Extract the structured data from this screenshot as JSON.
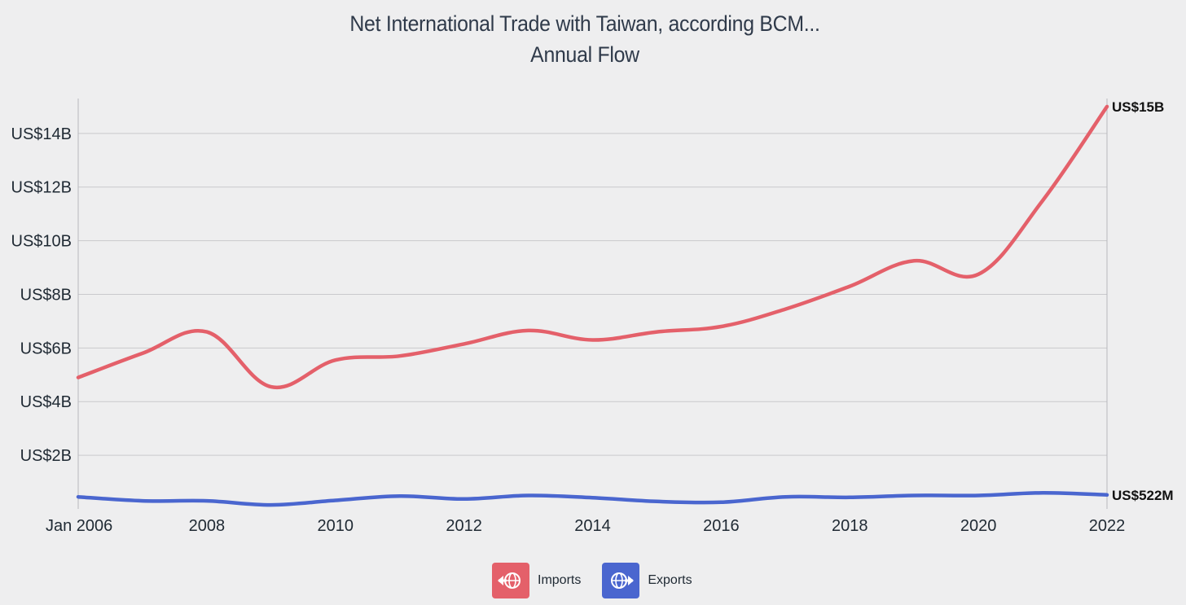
{
  "chart_data": {
    "type": "line",
    "title": "Net International Trade with Taiwan, according BCM...",
    "subtitle": "Annual Flow",
    "xlabel": "",
    "ylabel": "",
    "x": [
      2006,
      2007,
      2008,
      2009,
      2010,
      2011,
      2012,
      2013,
      2014,
      2015,
      2016,
      2017,
      2018,
      2019,
      2020,
      2021,
      2022
    ],
    "x_tick_values": [
      2006,
      2008,
      2010,
      2012,
      2014,
      2016,
      2018,
      2020,
      2022
    ],
    "x_tick_labels": [
      "Jan 2006",
      "2008",
      "2010",
      "2012",
      "2014",
      "2016",
      "2018",
      "2020",
      "2022"
    ],
    "y_tick_values": [
      2,
      4,
      6,
      8,
      10,
      12,
      14
    ],
    "y_tick_labels": [
      "US$2B",
      "US$4B",
      "US$6B",
      "US$8B",
      "US$10B",
      "US$12B",
      "US$14B"
    ],
    "ylim": [
      0,
      15.3
    ],
    "xlim": [
      2006,
      2022
    ],
    "grid": true,
    "series": [
      {
        "name": "Imports",
        "color": "#e4606a",
        "values": [
          4.9,
          5.8,
          6.6,
          4.55,
          5.55,
          5.7,
          6.15,
          6.65,
          6.3,
          6.6,
          6.8,
          7.45,
          8.3,
          9.25,
          8.75,
          11.5,
          15.0
        ],
        "end_label": "US$15B",
        "icon": "import-globe-icon"
      },
      {
        "name": "Exports",
        "color": "#4a66cf",
        "values": [
          0.45,
          0.3,
          0.3,
          0.15,
          0.32,
          0.48,
          0.37,
          0.5,
          0.42,
          0.28,
          0.25,
          0.45,
          0.43,
          0.5,
          0.5,
          0.6,
          0.522
        ],
        "end_label": "US$522M",
        "icon": "export-globe-icon"
      }
    ],
    "legend": "bottom-center"
  }
}
